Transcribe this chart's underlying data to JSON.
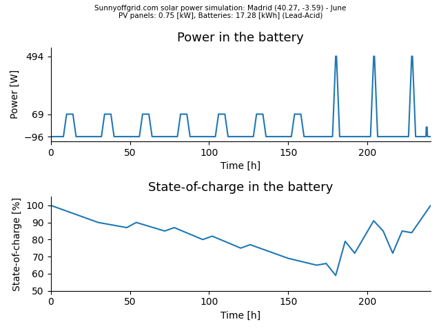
{
  "suptitle_line1": "Sunnyoffgrid.com solar power simulation: Madrid (40.27, -3.59) - June",
  "suptitle_line2": "PV panels: 0.75 [kW], Batteries: 17.28 [kWh] (Lead-Acid)",
  "plot1_title": "Power in the battery",
  "plot1_ylabel": "Power [W]",
  "plot1_xlabel": "Time [h]",
  "plot1_yticks": [
    -96,
    69,
    494
  ],
  "plot1_xlim": [
    0,
    240
  ],
  "plot1_ylim": [
    -130,
    560
  ],
  "plot2_title": "State-of-charge in the battery",
  "plot2_ylabel": "State-of-charge [%]",
  "plot2_xlabel": "Time [h]",
  "plot2_yticks": [
    50,
    60,
    70,
    80,
    90,
    100
  ],
  "plot2_xlim": [
    0,
    240
  ],
  "plot2_ylim": [
    50,
    105
  ],
  "line_color": "#1f77b4",
  "line_width": 1.5,
  "background_color": "#ffffff",
  "xticks": [
    0,
    50,
    100,
    150,
    200
  ],
  "low_peak": 69,
  "high_peak": 494,
  "base": -96
}
